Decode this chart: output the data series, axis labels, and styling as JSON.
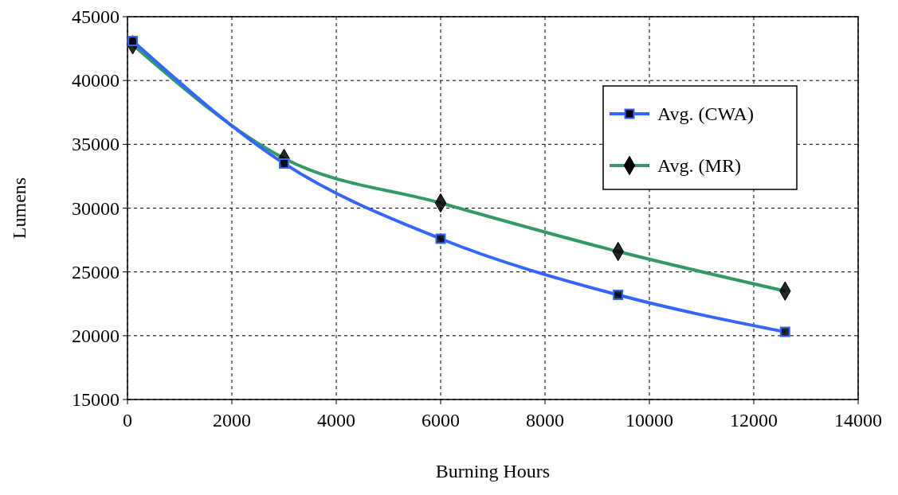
{
  "chart_data": {
    "type": "line",
    "xlabel": "Burning Hours",
    "ylabel": "Lumens",
    "xlim": [
      0,
      14000
    ],
    "xticks": [
      0,
      2000,
      4000,
      6000,
      8000,
      10000,
      12000,
      14000
    ],
    "ylim": [
      15000,
      45000
    ],
    "yticks": [
      15000,
      20000,
      25000,
      30000,
      35000,
      40000,
      45000
    ],
    "grid": true,
    "legend": "right",
    "series": [
      {
        "name": "Avg. (CWA)",
        "color": "#3366ff",
        "marker": "square",
        "x": [
          100,
          3000,
          6000,
          9400,
          12600
        ],
        "values": [
          43100,
          33500,
          27600,
          23200,
          20300
        ]
      },
      {
        "name": "Avg. (MR)",
        "color": "#339966",
        "marker": "diamond",
        "x": [
          100,
          3000,
          6000,
          9400,
          12600
        ],
        "values": [
          42800,
          33900,
          30400,
          26600,
          23500
        ]
      }
    ]
  }
}
